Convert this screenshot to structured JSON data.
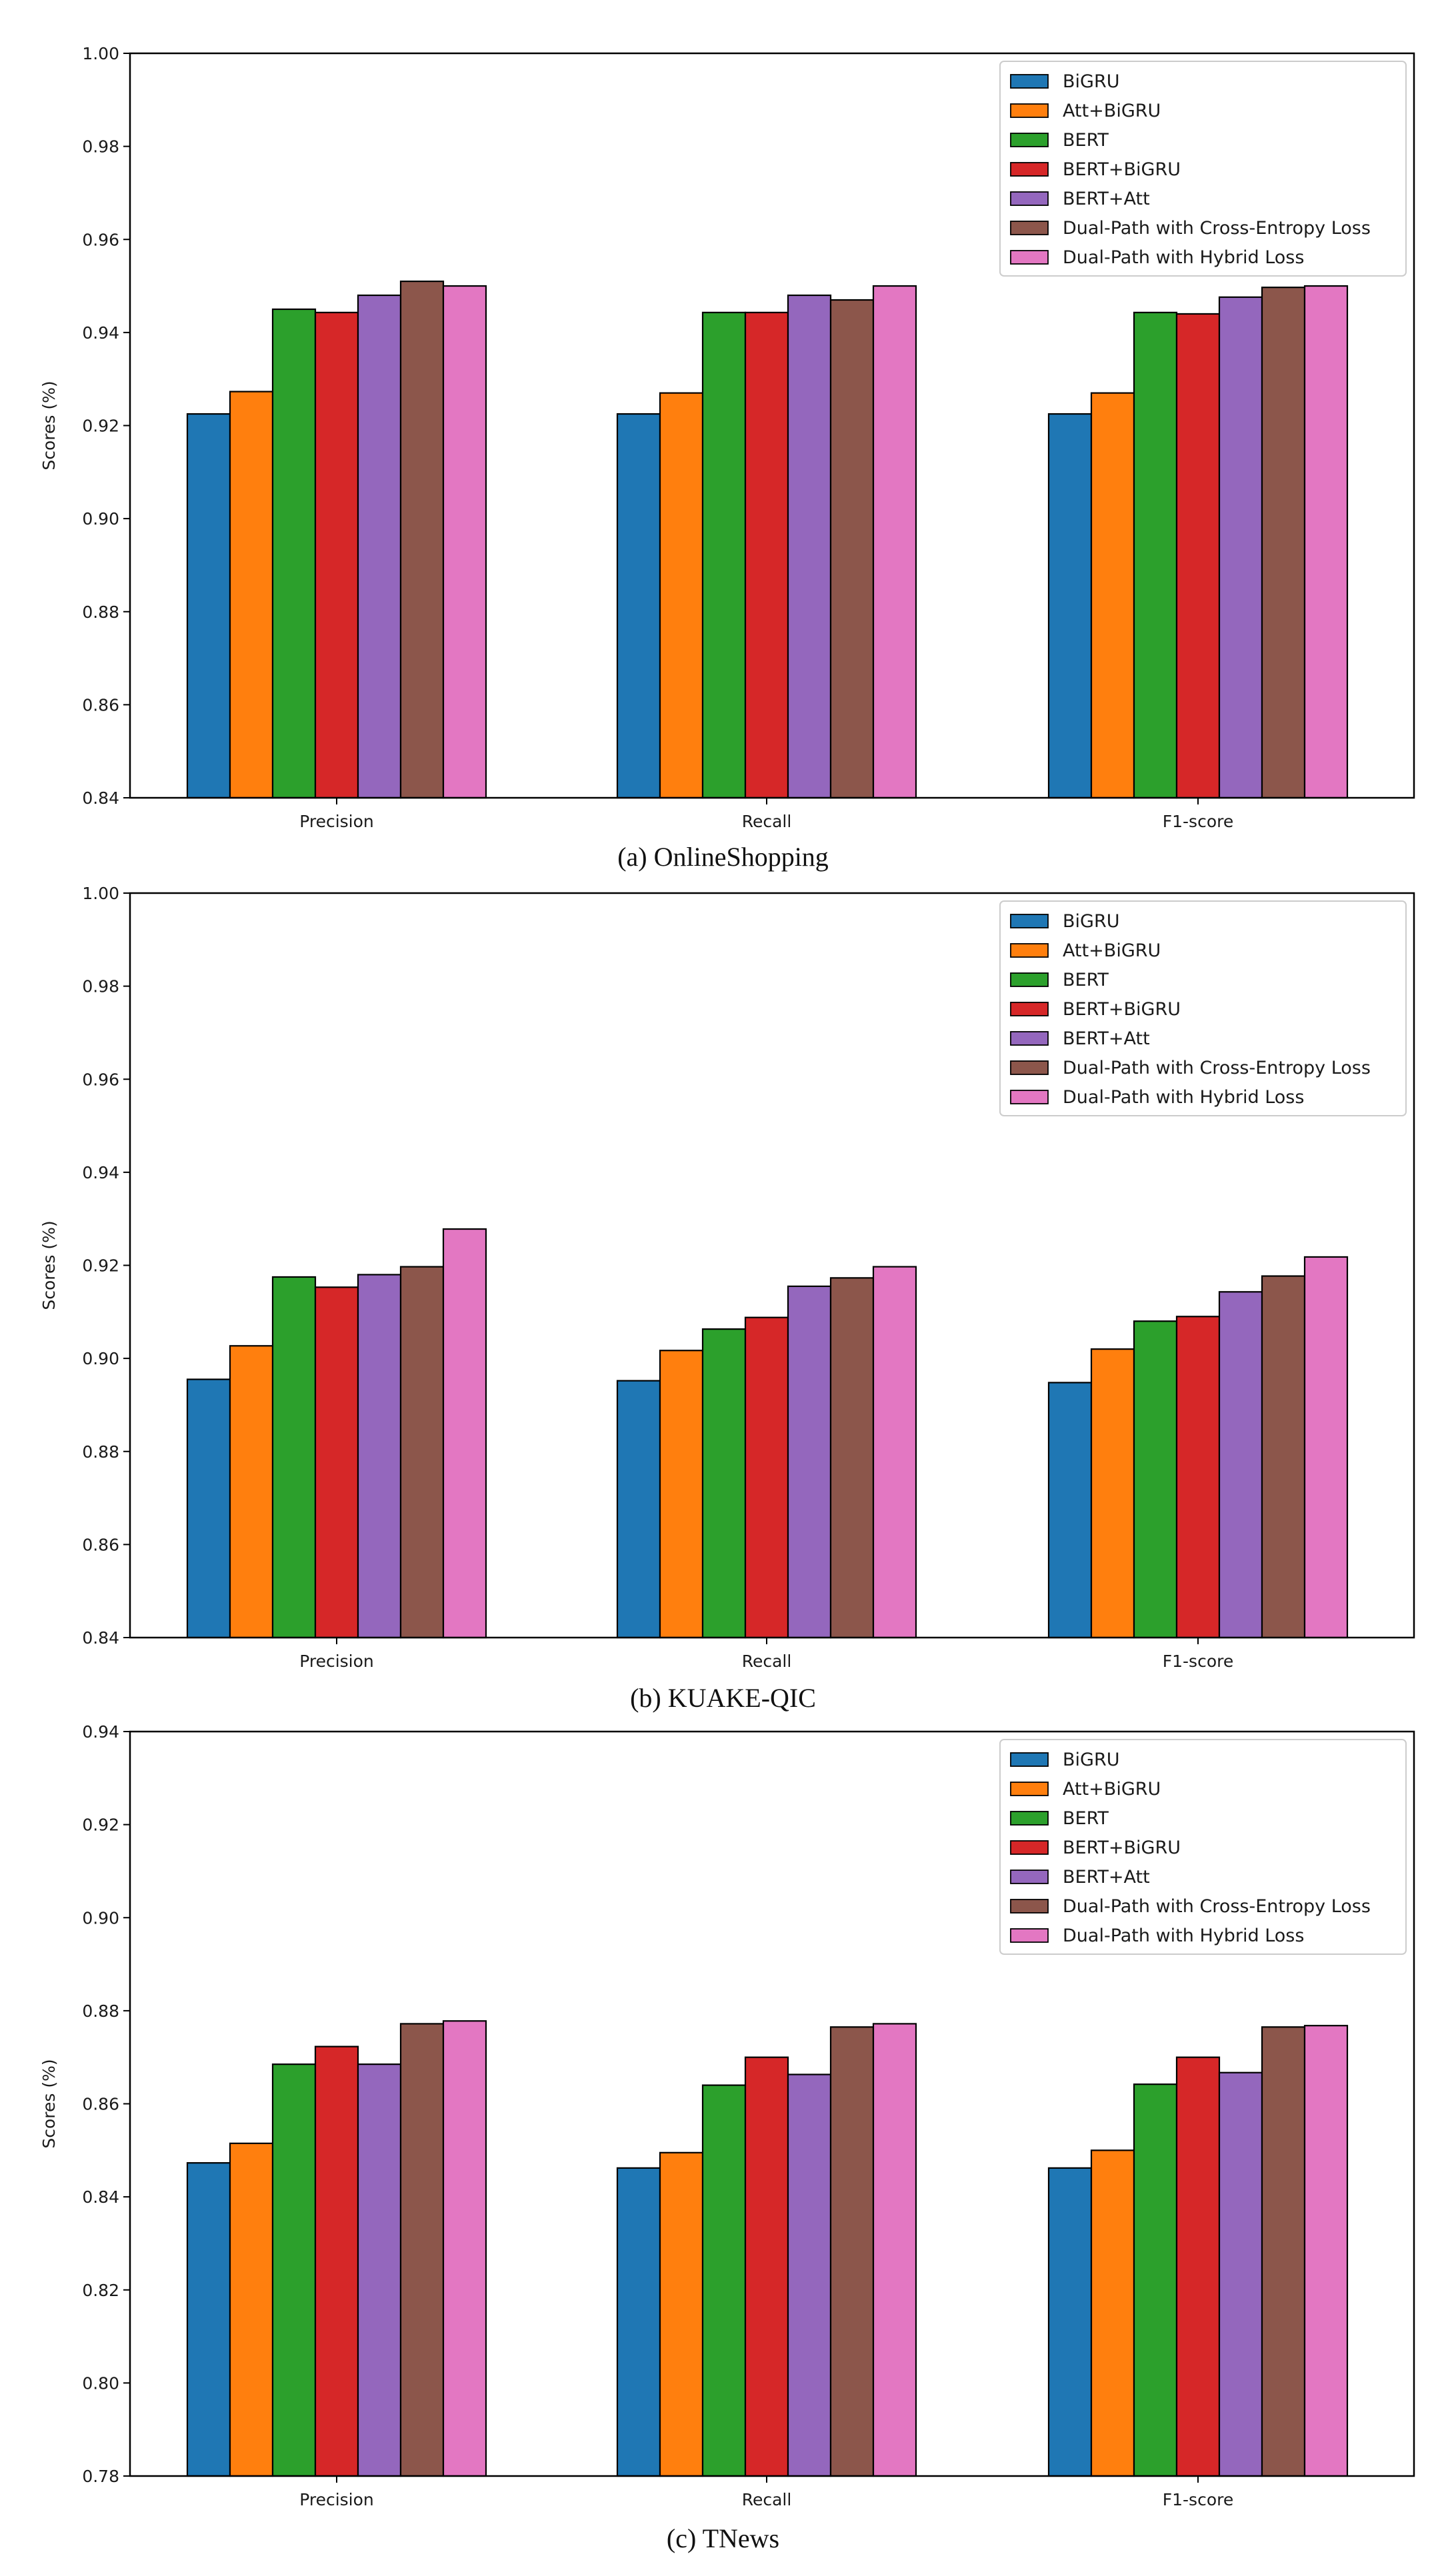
{
  "colors": [
    "#1f77b4",
    "#ff7f0e",
    "#2ca02c",
    "#d62728",
    "#9467bd",
    "#8c564b",
    "#e377c2"
  ],
  "chart_data": [
    {
      "type": "bar",
      "caption": "(a) OnlineShopping",
      "ylabel": "Scores (%)",
      "categories": [
        "Precision",
        "Recall",
        "F1-score"
      ],
      "ylim": [
        0.84,
        1.0
      ],
      "yticks": [
        "0.84",
        "0.86",
        "0.88",
        "0.90",
        "0.92",
        "0.94",
        "0.96",
        "0.98",
        "1.00"
      ],
      "legend_position": "top-right",
      "series": [
        {
          "name": "BiGRU",
          "values": [
            0.9225,
            0.9225,
            0.9225
          ]
        },
        {
          "name": "Att+BiGRU",
          "values": [
            0.9273,
            0.927,
            0.927
          ]
        },
        {
          "name": "BERT",
          "values": [
            0.945,
            0.9443,
            0.9443
          ]
        },
        {
          "name": "BERT+BiGRU",
          "values": [
            0.9443,
            0.9443,
            0.944
          ]
        },
        {
          "name": "BERT+Att",
          "values": [
            0.948,
            0.948,
            0.9476
          ]
        },
        {
          "name": "Dual-Path with Cross-Entropy Loss",
          "values": [
            0.951,
            0.947,
            0.9497
          ]
        },
        {
          "name": "Dual-Path with Hybrid Loss",
          "values": [
            0.95,
            0.95,
            0.95
          ]
        }
      ]
    },
    {
      "type": "bar",
      "caption": "(b) KUAKE-QIC",
      "ylabel": "Scores (%)",
      "categories": [
        "Precision",
        "Recall",
        "F1-score"
      ],
      "ylim": [
        0.84,
        1.0
      ],
      "yticks": [
        "0.84",
        "0.86",
        "0.88",
        "0.90",
        "0.92",
        "0.94",
        "0.96",
        "0.98",
        "1.00"
      ],
      "legend_position": "top-right",
      "series": [
        {
          "name": "BiGRU",
          "values": [
            0.8955,
            0.8952,
            0.8948
          ]
        },
        {
          "name": "Att+BiGRU",
          "values": [
            0.9027,
            0.9017,
            0.902
          ]
        },
        {
          "name": "BERT",
          "values": [
            0.9175,
            0.9063,
            0.908
          ]
        },
        {
          "name": "BERT+BiGRU",
          "values": [
            0.9153,
            0.9088,
            0.909
          ]
        },
        {
          "name": "BERT+Att",
          "values": [
            0.918,
            0.9155,
            0.9143
          ]
        },
        {
          "name": "Dual-Path with Cross-Entropy Loss",
          "values": [
            0.9197,
            0.9173,
            0.9177
          ]
        },
        {
          "name": "Dual-Path with Hybrid Loss",
          "values": [
            0.9278,
            0.9197,
            0.9218
          ]
        }
      ]
    },
    {
      "type": "bar",
      "caption": "(c) TNews",
      "ylabel": "Scores (%)",
      "categories": [
        "Precision",
        "Recall",
        "F1-score"
      ],
      "ylim": [
        0.78,
        0.94
      ],
      "yticks": [
        "0.78",
        "0.80",
        "0.82",
        "0.84",
        "0.86",
        "0.88",
        "0.90",
        "0.92",
        "0.94"
      ],
      "legend_position": "top-right",
      "series": [
        {
          "name": "BiGRU",
          "values": [
            0.8473,
            0.8462,
            0.8462
          ]
        },
        {
          "name": "Att+BiGRU",
          "values": [
            0.8515,
            0.8495,
            0.85
          ]
        },
        {
          "name": "BERT",
          "values": [
            0.8685,
            0.864,
            0.8642
          ]
        },
        {
          "name": "BERT+BiGRU",
          "values": [
            0.8723,
            0.87,
            0.87
          ]
        },
        {
          "name": "BERT+Att",
          "values": [
            0.8685,
            0.8663,
            0.8667
          ]
        },
        {
          "name": "Dual-Path with Cross-Entropy Loss",
          "values": [
            0.8772,
            0.8765,
            0.8765
          ]
        },
        {
          "name": "Dual-Path with Hybrid Loss",
          "values": [
            0.8778,
            0.8772,
            0.8768
          ]
        }
      ]
    }
  ]
}
